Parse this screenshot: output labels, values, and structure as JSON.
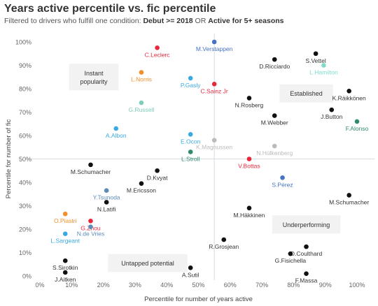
{
  "title": "Years active percentile vs. fic percentile",
  "subtitle_prefix": "Filtered to drivers who fulfill one condition: ",
  "subtitle_cond1": "Debut >= 2018",
  "subtitle_or": " OR ",
  "subtitle_cond2": "Active for 5+ seasons",
  "chart_data": {
    "type": "scatter",
    "xlabel": "Percentile for number of years active",
    "ylabel": "Percentile for number of fic",
    "xlim": [
      0,
      100
    ],
    "ylim": [
      0,
      100
    ],
    "x_ticks": [
      "0%",
      "10%",
      "20%",
      "30%",
      "40%",
      "50%",
      "60%",
      "70%",
      "80%",
      "90%",
      "100%"
    ],
    "y_ticks": [
      "0%",
      "10%",
      "20%",
      "30%",
      "40%",
      "50%",
      "60%",
      "70%",
      "80%",
      "90%",
      "100%"
    ],
    "reference_lines": {
      "x": 55,
      "y": 50
    },
    "quadrant_labels": [
      {
        "text": "Instant popularity",
        "x": 17,
        "y": 85
      },
      {
        "text": "Established",
        "x": 84,
        "y": 78
      },
      {
        "text": "Underperforming",
        "x": 84,
        "y": 22
      },
      {
        "text": "Untapped potential",
        "x": 34,
        "y": 5.5
      }
    ],
    "points": [
      {
        "name": "M.Verstappen",
        "x": 55,
        "y": 100,
        "color": "#4472c4"
      },
      {
        "name": "C.Leclerc",
        "x": 37,
        "y": 97.5,
        "color": "#e8273a"
      },
      {
        "name": "L.Norris",
        "x": 32,
        "y": 87,
        "color": "#f28e2b"
      },
      {
        "name": "P.Gasly",
        "x": 47.5,
        "y": 84.5,
        "color": "#3aa9e0"
      },
      {
        "name": "C.Sainz Jr",
        "x": 55,
        "y": 82,
        "color": "#e8273a"
      },
      {
        "name": "G.Russell",
        "x": 32,
        "y": 74,
        "color": "#7fcdbb"
      },
      {
        "name": "A.Albon",
        "x": 24,
        "y": 63,
        "color": "#3aa9e0"
      },
      {
        "name": "E.Ocon",
        "x": 47.5,
        "y": 60.5,
        "color": "#3aa9e0"
      },
      {
        "name": "K.Magnussen",
        "x": 55,
        "y": 58,
        "color": "#bbbbbb"
      },
      {
        "name": "L.Stroll",
        "x": 47.5,
        "y": 53,
        "color": "#2e8b6f"
      },
      {
        "name": "N.Hülkenberg",
        "x": 74,
        "y": 55.5,
        "color": "#bbbbbb"
      },
      {
        "name": "V.Bottas",
        "x": 66,
        "y": 50,
        "color": "#e8273a"
      },
      {
        "name": "S.Pérez",
        "x": 76.5,
        "y": 42,
        "color": "#4472c4"
      },
      {
        "name": "D.Ricciardo",
        "x": 74,
        "y": 92.5,
        "color": "#111111"
      },
      {
        "name": "S.Vettel",
        "x": 87,
        "y": 95,
        "color": "#111111"
      },
      {
        "name": "L.Hamilton",
        "x": 89.5,
        "y": 90,
        "color": "#7fdcc8"
      },
      {
        "name": "K.Räikkönen",
        "x": 97.5,
        "y": 79,
        "color": "#111111"
      },
      {
        "name": "N.Rosberg",
        "x": 66,
        "y": 76,
        "color": "#111111"
      },
      {
        "name": "J.Button",
        "x": 92,
        "y": 71,
        "color": "#111111"
      },
      {
        "name": "M.Webber",
        "x": 74,
        "y": 68.5,
        "color": "#111111"
      },
      {
        "name": "F.Alonso",
        "x": 100,
        "y": 66,
        "color": "#2e8b6f"
      },
      {
        "name": "M.Schumacher",
        "x": 16,
        "y": 47.5,
        "color": "#111111"
      },
      {
        "name": "D.Kvyat",
        "x": 37,
        "y": 45,
        "color": "#111111"
      },
      {
        "name": "M.Ericsson",
        "x": 32,
        "y": 39.5,
        "color": "#111111"
      },
      {
        "name": "Y.Tsunoda",
        "x": 21,
        "y": 36.5,
        "color": "#5b8db8"
      },
      {
        "name": "N.Latifi",
        "x": 21,
        "y": 31.5,
        "color": "#111111"
      },
      {
        "name": "O.Piastri",
        "x": 8,
        "y": 26.5,
        "color": "#f28e2b"
      },
      {
        "name": "G.Zhou",
        "x": 16,
        "y": 23.5,
        "color": "#e8273a"
      },
      {
        "name": "N.de Vries",
        "x": 16,
        "y": 21,
        "color": "#5b8db8"
      },
      {
        "name": "L.Sargeant",
        "x": 8,
        "y": 18,
        "color": "#3aa9e0"
      },
      {
        "name": "M.Schumacher",
        "x": 97.5,
        "y": 34.5,
        "color": "#111111"
      },
      {
        "name": "M.Häkkinen",
        "x": 66,
        "y": 29,
        "color": "#111111"
      },
      {
        "name": "R.Grosjean",
        "x": 58,
        "y": 15.5,
        "color": "#111111"
      },
      {
        "name": "D.Coulthard",
        "x": 84,
        "y": 12.5,
        "color": "#111111"
      },
      {
        "name": "G.Fisichella",
        "x": 79,
        "y": 9.5,
        "color": "#111111"
      },
      {
        "name": "S.Sirotkin",
        "x": 8,
        "y": 6.5,
        "color": "#111111"
      },
      {
        "name": "J.Aitken",
        "x": 8,
        "y": 1.5,
        "color": "#111111"
      },
      {
        "name": "A.Sutil",
        "x": 47.5,
        "y": 3.5,
        "color": "#111111"
      },
      {
        "name": "F.Massa",
        "x": 84,
        "y": 1,
        "color": "#111111"
      }
    ]
  }
}
